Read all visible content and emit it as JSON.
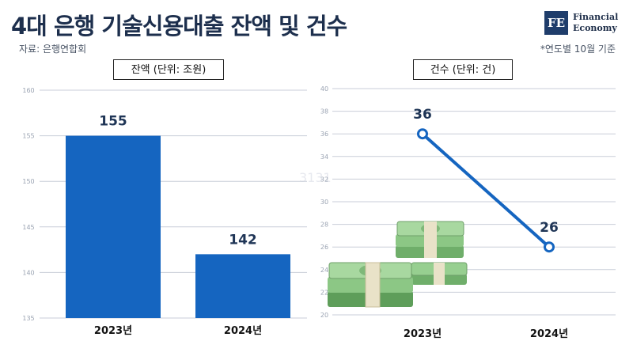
{
  "header": {
    "title": "4대 은행 기술신용대출 잔액 및 건수",
    "source": "자료: 은행연합회",
    "note": "*연도별 10월 기준",
    "logo_mark": "FE",
    "logo_line1": "Financial",
    "logo_line2": "Economy"
  },
  "watermark": "3131",
  "chart_data": [
    {
      "type": "bar",
      "title": "잔액 (단위: 조원)",
      "categories": [
        "2023년",
        "2024년"
      ],
      "values": [
        155,
        142
      ],
      "ylim": [
        135,
        160
      ],
      "yticks": [
        135,
        140,
        145,
        150,
        155,
        160
      ],
      "grid": true,
      "color": "#1565c0"
    },
    {
      "type": "line",
      "title": "건수 (단위: 건)",
      "categories": [
        "2023년",
        "2024년"
      ],
      "values": [
        36,
        26
      ],
      "ylim": [
        20,
        40
      ],
      "yticks": [
        20,
        22,
        24,
        26,
        28,
        30,
        32,
        34,
        36,
        38,
        40
      ],
      "grid": true,
      "color": "#1565c0"
    }
  ]
}
